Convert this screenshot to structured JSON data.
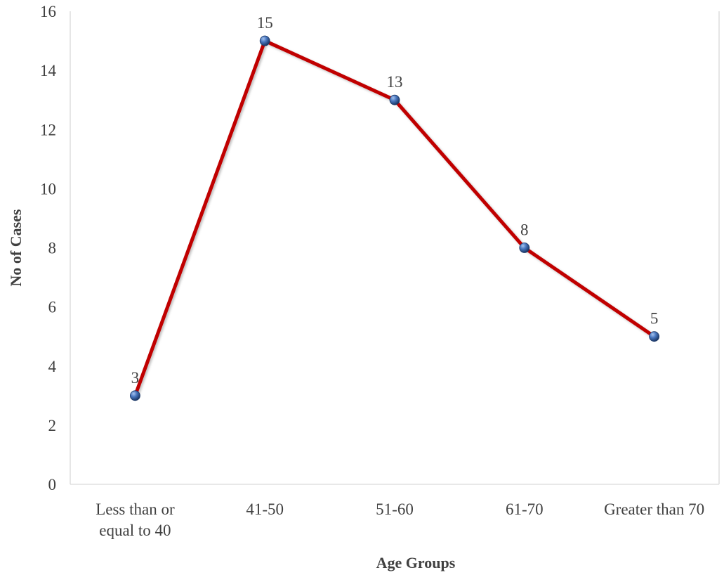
{
  "chart_data": {
    "type": "line",
    "title": "",
    "xlabel": "Age Groups",
    "ylabel": "No of Cases",
    "categories": [
      [
        "Less than or",
        "equal to 40"
      ],
      [
        "41-50"
      ],
      [
        "51-60"
      ],
      [
        "61-70"
      ],
      [
        "Greater than 70"
      ]
    ],
    "series": [
      {
        "values": [
          3,
          15,
          13,
          8,
          5
        ],
        "color": "#c00000",
        "marker_color": "#2f5b9b"
      }
    ],
    "ylim": [
      0,
      16
    ],
    "yticks": [
      0,
      2,
      4,
      6,
      8,
      10,
      12,
      14,
      16
    ],
    "grid": false,
    "legend": "none",
    "data_labels": true,
    "axis_color": "#d9d9d9"
  }
}
